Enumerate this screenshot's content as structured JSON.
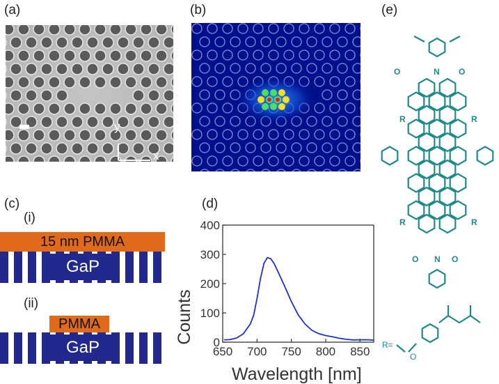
{
  "panels": {
    "a": "(a)",
    "b": "(b)",
    "c": "(c)",
    "d": "(d)",
    "e": "(e)"
  },
  "sem": {
    "axis_y": "y",
    "axis_x": "x"
  },
  "structures": {
    "i_label": "(i)",
    "ii_label": "(ii)",
    "pmma_film": "15 nm PMMA",
    "pmma_patch": "PMMA",
    "gap_i": "GaP",
    "gap_ii": "GaP"
  },
  "molecule": {
    "imide_o": "O",
    "imide_n": "N",
    "substituent_r": "R",
    "r_definition": "R=",
    "ether_o": "O"
  },
  "colors": {
    "pmma": "#e06a1a",
    "gap": "#22288c",
    "spectrum": "#1a2fd6",
    "molecule": "#1f8a8a"
  },
  "chart_data": {
    "type": "line",
    "title": "",
    "xlabel": "Wavelength [nm]",
    "ylabel": "Counts",
    "xlim": [
      650,
      870
    ],
    "ylim": [
      0,
      400
    ],
    "x_ticks": [
      650,
      700,
      750,
      800,
      850
    ],
    "y_ticks": [
      0,
      100,
      200,
      300,
      400
    ],
    "grid": false,
    "series": [
      {
        "x": [
          652,
          660,
          670,
          680,
          690,
          695,
          700,
          705,
          710,
          715,
          720,
          725,
          730,
          740,
          750,
          760,
          770,
          780,
          790,
          800,
          810,
          820,
          830,
          840,
          850,
          860,
          870
        ],
        "values": [
          8,
          10,
          15,
          28,
          60,
          95,
          150,
          215,
          265,
          288,
          288,
          272,
          245,
          190,
          135,
          92,
          62,
          42,
          30,
          22,
          17,
          13,
          11,
          9,
          8,
          7,
          6
        ]
      }
    ]
  }
}
